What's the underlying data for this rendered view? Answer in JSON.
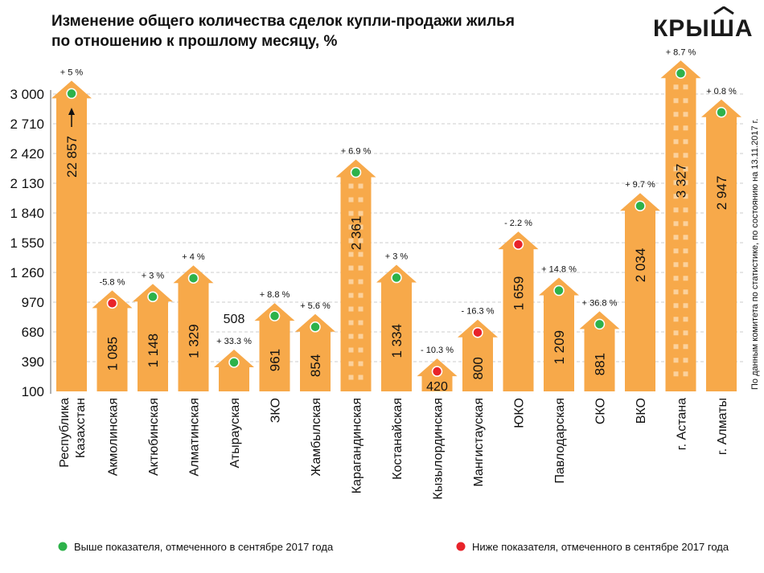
{
  "title_lines": [
    "Изменение общего количества сделок купли-продажи жилья",
    "по отношению к прошлому месяцу, %"
  ],
  "logo_text": "КРЫША",
  "source_note": "По данным комитета по статистике, по состоянию на 13.11.2017 г.",
  "colors": {
    "bar": "#F7A94A",
    "above": "#2DB24A",
    "below": "#E8232A",
    "grid": "#cccccc",
    "axis": "#b0b0b0"
  },
  "legend": [
    {
      "label": "Выше показателя, отмеченного в сентябре 2017 года",
      "color": "#2DB24A"
    },
    {
      "label": "Ниже показателя, отмеченного в сентябре 2017 года",
      "color": "#E8232A"
    }
  ],
  "chart_data": {
    "type": "bar",
    "title": "Изменение общего количества сделок купли-продажи жилья по отношению к прошлому месяцу, %",
    "ylim": [
      100,
      3000
    ],
    "yticks": [
      "3 000",
      "2 710",
      "2 420",
      "2 130",
      "1 840",
      "1 550",
      "1 260",
      "970",
      "680",
      "390",
      "100"
    ],
    "ytick_values": [
      3000,
      2710,
      2420,
      2130,
      1840,
      1550,
      1260,
      970,
      680,
      390,
      100
    ],
    "grid": true,
    "categories": [
      [
        "Республика",
        "Казахстан"
      ],
      [
        "Акмолинская"
      ],
      [
        "Актюбинская"
      ],
      [
        "Алматинская"
      ],
      [
        "Атырауская"
      ],
      [
        "ЗКО"
      ],
      [
        "Жамбылская"
      ],
      [
        "Карагандинская"
      ],
      [
        "Костанайская"
      ],
      [
        "Кызылординская"
      ],
      [
        "Мангистауская"
      ],
      [
        "ЮКО"
      ],
      [
        "Павлодарская"
      ],
      [
        "СКО"
      ],
      [
        "ВКО"
      ],
      [
        "г. Астана"
      ],
      [
        "г. Алматы"
      ]
    ],
    "values": [
      22857,
      1085,
      1148,
      1329,
      508,
      961,
      854,
      2361,
      1334,
      420,
      800,
      1659,
      1209,
      881,
      2034,
      3327,
      2947
    ],
    "value_labels": [
      "22 857",
      "1 085",
      "1 148",
      "1 329",
      "508",
      "961",
      "854",
      "2 361",
      "1 334",
      "420",
      "800",
      "1 659",
      "1 209",
      "881",
      "2 034",
      "3 327",
      "2 947"
    ],
    "change_labels": [
      "+ 5 %",
      "-5.8 %",
      "+ 3 %",
      "+ 4 %",
      "+ 33.3 %",
      "+ 8.8 %",
      "+ 5.6 %",
      "+ 6.9 %",
      "+ 3 %",
      "- 10.3 %",
      "- 16.3 %",
      "- 2.2 %",
      "+ 14.8 %",
      "+ 36.8 %",
      "+ 9.7 %",
      "+ 8.7 %",
      "+ 0.8 %"
    ],
    "change_percent": [
      5,
      -5.8,
      3,
      4,
      33.3,
      8.8,
      5.6,
      6.9,
      3,
      -10.3,
      -16.3,
      -2.2,
      14.8,
      36.8,
      9.7,
      8.7,
      0.8
    ],
    "vs_september": [
      "above",
      "below",
      "above",
      "above",
      "above",
      "above",
      "above",
      "above",
      "above",
      "below",
      "below",
      "below",
      "above",
      "above",
      "above",
      "above",
      "above"
    ]
  }
}
